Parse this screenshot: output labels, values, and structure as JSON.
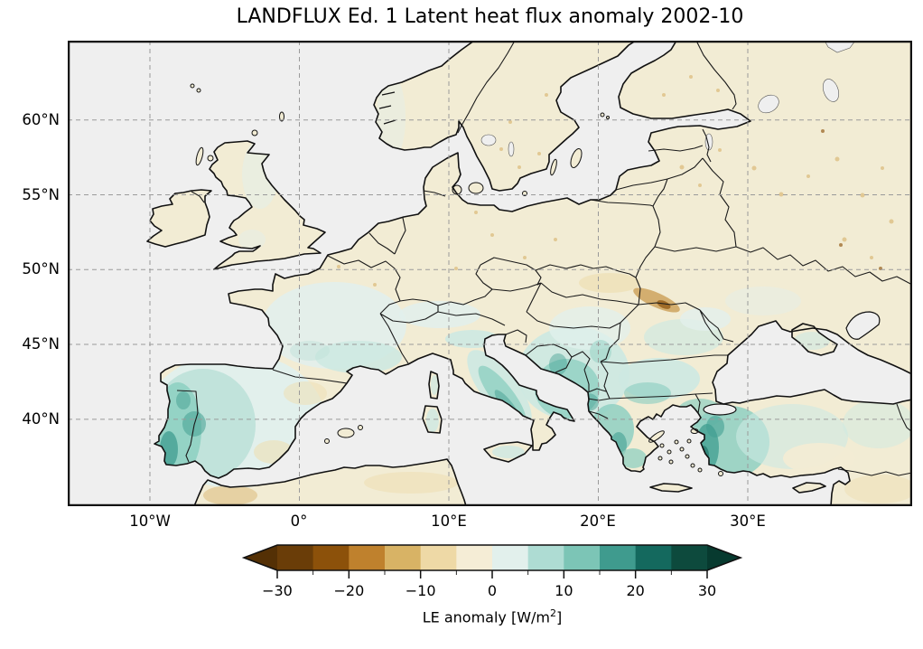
{
  "figure": {
    "title": "LANDFLUX Ed. 1 Latent heat flux anomaly 2002-10"
  },
  "map": {
    "ocean_color": "#efefef",
    "land_color": "#f2ecd4",
    "coastline_color": "#111111",
    "gridline_color": "#9a9a9a"
  },
  "axes": {
    "y_ticks": [
      "60°N",
      "55°N",
      "50°N",
      "45°N",
      "40°N"
    ],
    "x_ticks": [
      "10°W",
      "0°",
      "10°E",
      "20°E",
      "30°E"
    ]
  },
  "colorbar": {
    "label_prefix": "LE anomaly [W/m",
    "label_sup": "2",
    "label_suffix": "]",
    "ticks": [
      "−30",
      "−20",
      "−10",
      "0",
      "10",
      "20",
      "30"
    ],
    "tick_values": [
      -30,
      -20,
      -10,
      0,
      10,
      20,
      30
    ],
    "levels": [
      -30,
      -25,
      -20,
      -15,
      -10,
      -5,
      0,
      5,
      10,
      15,
      20,
      25,
      30
    ],
    "colors": [
      "#6a3d08",
      "#8c510a",
      "#bf812d",
      "#d8b365",
      "#eed9a6",
      "#f5edd6",
      "#e2f0ec",
      "#aedcd3",
      "#7cc5b6",
      "#3f9b8e",
      "#14695e",
      "#0d4a3d"
    ],
    "extend_low_color": "#543005",
    "extend_high_color": "#073a2f"
  },
  "chart_data": {
    "type": "heatmap",
    "title": "LANDFLUX Ed. 1 Latent heat flux anomaly 2002-10",
    "value_label": "LE anomaly [W/m²]",
    "value_range": [
      -30,
      30
    ],
    "bin_size": 5,
    "colormap_levels": [
      -30,
      -25,
      -20,
      -15,
      -10,
      -5,
      0,
      5,
      10,
      15,
      20,
      25,
      30
    ],
    "colormap_colors": [
      "#543005",
      "#6a3d08",
      "#8c510a",
      "#bf812d",
      "#d8b365",
      "#eed9a6",
      "#f5edd6",
      "#e2f0ec",
      "#aedcd3",
      "#7cc5b6",
      "#3f9b8e",
      "#14695e",
      "#0d4a3d",
      "#073a2f"
    ],
    "x_tick_labels": [
      "10°W",
      "0°",
      "10°E",
      "20°E",
      "30°E"
    ],
    "y_tick_labels": [
      "60°N",
      "55°N",
      "50°N",
      "45°N",
      "40°N"
    ],
    "grid": "dashed",
    "notable_regions": [
      {
        "region": "western Iberia (Portugal, W Spain)",
        "anomaly_wm2": "+10 to +25"
      },
      {
        "region": "Balkans, Greece, Bulgaria",
        "anomaly_wm2": "+10 to +25"
      },
      {
        "region": "western Turkey (Aegean coast)",
        "anomaly_wm2": "+15 to +25"
      },
      {
        "region": "Apennines / northern Italy",
        "anomaly_wm2": "+5 to +15"
      },
      {
        "region": "southern France",
        "anomaly_wm2": "0 to +10"
      },
      {
        "region": "central and northern Europe, Scandinavia, Baltics, W Russia",
        "anomaly_wm2": "-10 to 0"
      },
      {
        "region": "Carpathians (W Ukraine / Slovakia)",
        "anomaly_wm2": "-15 to -25"
      }
    ]
  }
}
